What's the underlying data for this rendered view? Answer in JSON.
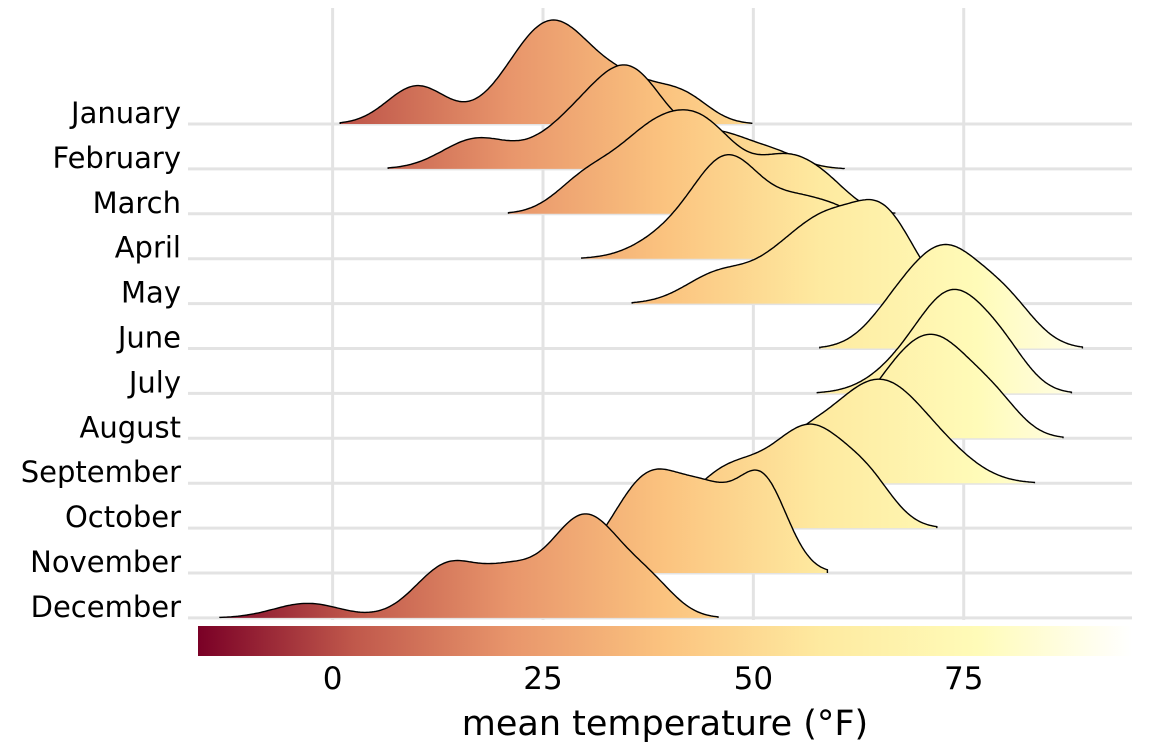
{
  "chart_data": {
    "type": "ridgeline",
    "xlabel": "mean temperature (°F)",
    "xlim": [
      -16,
      95
    ],
    "x_ticks": [
      0,
      25,
      50,
      75
    ],
    "x_tick_labels": [
      "0",
      "25",
      "50",
      "75"
    ],
    "grid": true,
    "legend": {
      "type": "colorbar",
      "placement": "bottom",
      "range": [
        -16,
        95
      ]
    },
    "colormap": [
      "#7a0026",
      "#c0584b",
      "#e8956b",
      "#fbc37f",
      "#feeaa0",
      "#fffbb8",
      "#ffffff"
    ],
    "series": [
      {
        "name": "January",
        "peaks": [
          [
            10,
            0.35,
            3.5
          ],
          [
            26,
            0.95,
            5
          ],
          [
            36,
            0.3,
            4
          ],
          [
            42,
            0.2,
            3
          ]
        ]
      },
      {
        "name": "February",
        "peaks": [
          [
            17,
            0.3,
            4
          ],
          [
            30,
            0.55,
            5
          ],
          [
            36,
            0.75,
            4
          ],
          [
            46,
            0.35,
            4
          ],
          [
            53,
            0.12,
            3
          ]
        ]
      },
      {
        "name": "March",
        "peaks": [
          [
            30,
            0.3,
            3.5
          ],
          [
            37,
            0.55,
            4
          ],
          [
            44,
            0.8,
            4.5
          ],
          [
            54,
            0.45,
            3.5
          ],
          [
            59,
            0.2,
            3
          ]
        ]
      },
      {
        "name": "April",
        "peaks": [
          [
            40,
            0.2,
            4
          ],
          [
            47,
            0.9,
            4
          ],
          [
            56,
            0.5,
            4
          ],
          [
            62,
            0.25,
            3
          ]
        ]
      },
      {
        "name": "May",
        "peaks": [
          [
            46,
            0.3,
            4
          ],
          [
            55,
            0.55,
            4
          ],
          [
            65,
            0.95,
            4
          ],
          [
            59,
            0.3,
            3
          ]
        ]
      },
      {
        "name": "June",
        "peaks": [
          [
            67,
            0.35,
            3.5
          ],
          [
            73,
            0.95,
            4
          ],
          [
            80,
            0.45,
            3.5
          ]
        ]
      },
      {
        "name": "July",
        "peaks": [
          [
            68,
            0.25,
            4
          ],
          [
            74,
            0.95,
            4
          ],
          [
            80,
            0.3,
            3
          ]
        ]
      },
      {
        "name": "August",
        "peaks": [
          [
            66,
            0.35,
            4
          ],
          [
            72,
            0.95,
            4.5
          ],
          [
            79,
            0.25,
            3
          ]
        ]
      },
      {
        "name": "September",
        "peaks": [
          [
            55,
            0.3,
            3
          ],
          [
            60,
            0.45,
            4
          ],
          [
            66,
            0.95,
            4.5
          ],
          [
            73,
            0.25,
            4
          ]
        ]
      },
      {
        "name": "October",
        "peaks": [
          [
            47,
            0.55,
            4.5
          ],
          [
            57,
            0.95,
            4.5
          ],
          [
            64,
            0.3,
            3
          ]
        ]
      },
      {
        "name": "November",
        "peaks": [
          [
            38,
            0.7,
            4.5
          ],
          [
            45,
            0.35,
            3
          ],
          [
            51,
            0.65,
            3
          ]
        ]
      },
      {
        "name": "December",
        "peaks": [
          [
            -3,
            0.12,
            4
          ],
          [
            14,
            0.45,
            4
          ],
          [
            21,
            0.25,
            3
          ],
          [
            30,
            0.85,
            4.5
          ],
          [
            38,
            0.2,
            3
          ]
        ]
      }
    ]
  }
}
